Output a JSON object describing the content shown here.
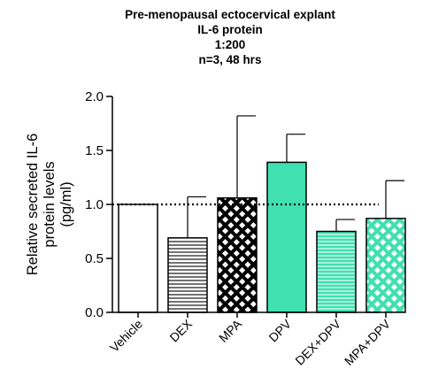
{
  "chart_data": {
    "type": "bar",
    "title_lines": [
      "Pre-menopausal ectocervical explant",
      "IL-6 protein",
      "1:200",
      "n=3, 48 hrs"
    ],
    "ylabel_lines": [
      "Relative secreted IL-6",
      "protein levels",
      "(pg/ml)"
    ],
    "xlabel": "",
    "ylim": [
      0,
      2.0
    ],
    "yticks": [
      0.0,
      0.5,
      1.0,
      1.5,
      2.0
    ],
    "ytick_labels": [
      "0.0",
      "0.5",
      "1.0",
      "1.5",
      "2.0"
    ],
    "reference_line": 1.0,
    "categories": [
      "Vehicle",
      "DEX",
      "MPA",
      "DPV",
      "DEX+DPV",
      "MPA+DPV"
    ],
    "values": [
      1.0,
      0.69,
      1.06,
      1.39,
      0.75,
      0.87
    ],
    "errors": [
      0.0,
      0.38,
      0.76,
      0.26,
      0.11,
      0.35
    ],
    "fills": [
      "white",
      "hlines",
      "crosshatch",
      "solid",
      "hlines",
      "crosshatch"
    ],
    "colors": {
      "axis": "#000000",
      "teal": "#40e0b0",
      "teal_dark": "#2fb88c",
      "black": "#000000",
      "white": "#ffffff"
    },
    "grid": false,
    "legend": "none"
  }
}
